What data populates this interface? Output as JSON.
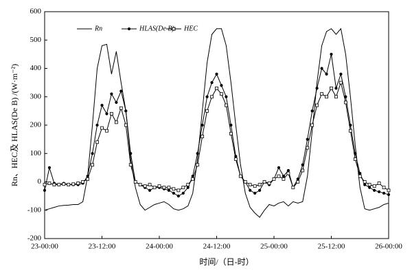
{
  "chart_data": {
    "type": "line",
    "y_label": "Rn、HEC及 HLAS(De B) /(W·m⁻²)",
    "x_label": "时间/（日-时）",
    "x": [
      0,
      1,
      2,
      3,
      4,
      5,
      6,
      7,
      8,
      9,
      10,
      11,
      12,
      13,
      14,
      15,
      16,
      17,
      18,
      19,
      20,
      21,
      22,
      23,
      24,
      25,
      26,
      27,
      28,
      29,
      30,
      31,
      32,
      33,
      34,
      35,
      36,
      37,
      38,
      39,
      40,
      41,
      42,
      43,
      44,
      45,
      46,
      47,
      48,
      49,
      50,
      51,
      52,
      53,
      54,
      55,
      56,
      57,
      58,
      59,
      60,
      61,
      62,
      63,
      64,
      65,
      66,
      67,
      68,
      69,
      70,
      71,
      72
    ],
    "xlim": [
      0,
      72
    ],
    "xticks": [
      {
        "value": 0,
        "label": "23-00:00"
      },
      {
        "value": 12,
        "label": "23-12:00"
      },
      {
        "value": 24,
        "label": "24-00:00"
      },
      {
        "value": 36,
        "label": "24-12:00"
      },
      {
        "value": 48,
        "label": "25-00:00"
      },
      {
        "value": 60,
        "label": "25-12:00"
      },
      {
        "value": 72,
        "label": "26-00:00"
      }
    ],
    "ylim": [
      -200,
      600
    ],
    "yticks": [
      -200,
      -100,
      0,
      100,
      200,
      300,
      400,
      500,
      600
    ],
    "legend": "upper left",
    "series": [
      {
        "name": "Rn",
        "color": "#000000",
        "marker": "none",
        "values": [
          -100,
          -95,
          -90,
          -85,
          -83,
          -82,
          -80,
          -80,
          -70,
          20,
          200,
          400,
          480,
          485,
          380,
          460,
          350,
          250,
          80,
          -20,
          -80,
          -100,
          -90,
          -80,
          -75,
          -70,
          -80,
          -95,
          -100,
          -95,
          -85,
          -40,
          80,
          250,
          420,
          520,
          540,
          540,
          480,
          350,
          200,
          60,
          -40,
          -90,
          -110,
          -125,
          -100,
          -80,
          -85,
          -75,
          -70,
          -85,
          -70,
          -75,
          -70,
          20,
          180,
          350,
          480,
          530,
          540,
          520,
          540,
          450,
          300,
          130,
          -20,
          -95,
          -100,
          -95,
          -90,
          -80,
          -75
        ]
      },
      {
        "name": "HLAS(De B)",
        "color": "#000000",
        "marker": "circle",
        "values": [
          -30,
          50,
          -5,
          -10,
          -5,
          -10,
          -10,
          -10,
          -5,
          20,
          100,
          200,
          270,
          240,
          310,
          280,
          320,
          250,
          100,
          0,
          -10,
          -20,
          -30,
          -20,
          -20,
          -25,
          -30,
          -40,
          -50,
          -40,
          -20,
          20,
          100,
          200,
          300,
          350,
          380,
          340,
          300,
          200,
          90,
          20,
          0,
          -30,
          -40,
          -30,
          0,
          -10,
          10,
          50,
          20,
          40,
          -20,
          10,
          60,
          150,
          250,
          330,
          400,
          380,
          450,
          330,
          380,
          300,
          200,
          100,
          30,
          -10,
          -20,
          -30,
          -35,
          -40,
          -45
        ]
      },
      {
        "name": "HEC",
        "color": "#000000",
        "marker": "square",
        "values": [
          -10,
          -5,
          -10,
          -10,
          -8,
          -10,
          -8,
          -5,
          0,
          10,
          60,
          140,
          190,
          180,
          240,
          210,
          260,
          200,
          60,
          0,
          -10,
          -15,
          -10,
          -20,
          -15,
          -20,
          -20,
          -25,
          -30,
          -20,
          -10,
          10,
          60,
          160,
          250,
          300,
          330,
          310,
          270,
          170,
          80,
          20,
          0,
          -10,
          -15,
          -10,
          0,
          -5,
          10,
          20,
          10,
          30,
          -20,
          0,
          40,
          120,
          200,
          270,
          310,
          300,
          330,
          300,
          350,
          280,
          180,
          80,
          20,
          0,
          -10,
          -15,
          -5,
          -20,
          -30
        ]
      }
    ]
  }
}
